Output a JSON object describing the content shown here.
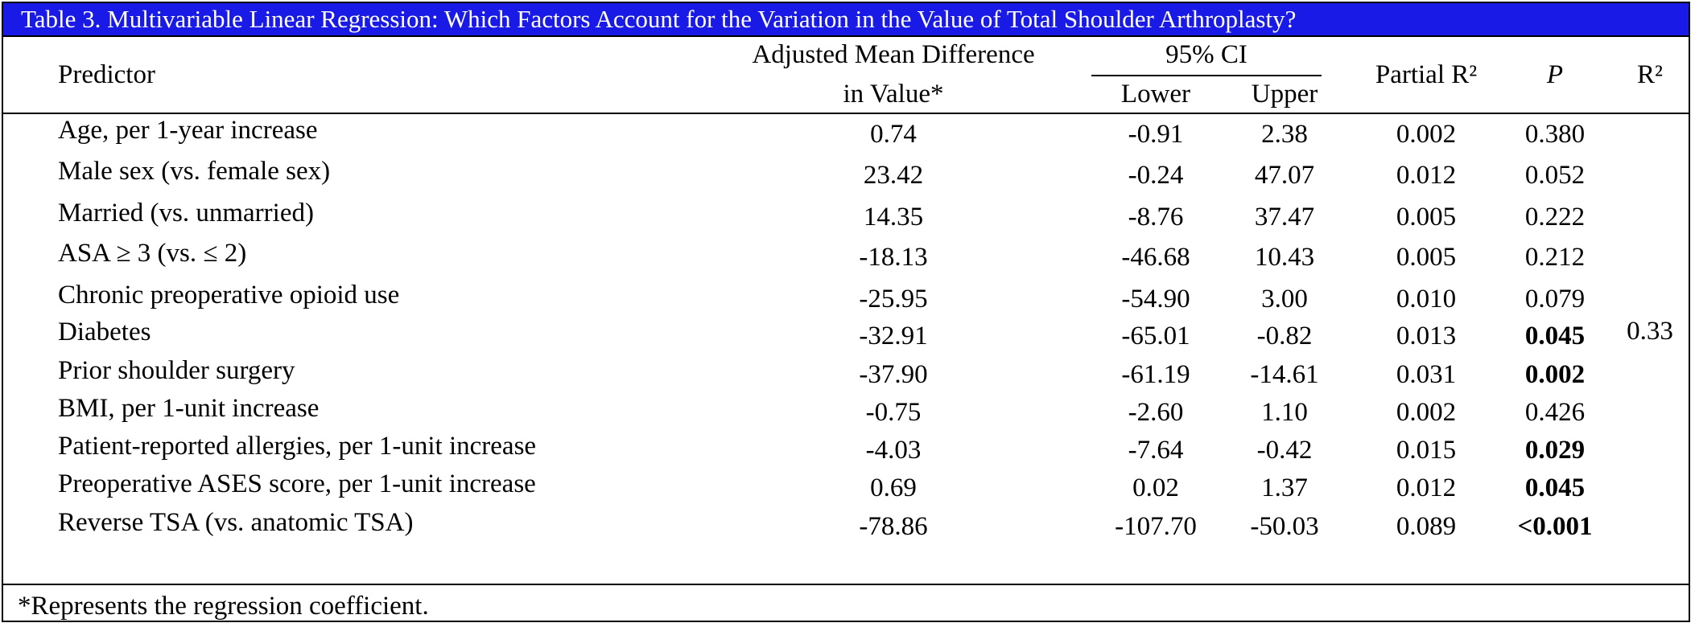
{
  "title": "Table 3. Multivariable Linear Regression: Which Factors Account for the Variation in the Value of Total Shoulder Arthroplasty?",
  "headers": {
    "predictor": "Predictor",
    "amd_line1": "Adjusted Mean Difference",
    "amd_line2": "in Value*",
    "ci": "95% CI",
    "lower": "Lower",
    "upper": "Upper",
    "partial_r2": "Partial R²",
    "p": "P",
    "r2": "R²"
  },
  "rows": [
    {
      "predictor": "Age, per 1-year increase",
      "amd": "0.74",
      "lower": "-0.91",
      "upper": "2.38",
      "partial_r2": "0.002",
      "p": "0.380"
    },
    {
      "predictor": "Male sex (vs. female sex)",
      "amd": "23.42",
      "lower": "-0.24",
      "upper": "47.07",
      "partial_r2": "0.012",
      "p": "0.052"
    },
    {
      "predictor": "Married (vs. unmarried)",
      "amd": "14.35",
      "lower": "-8.76",
      "upper": "37.47",
      "partial_r2": "0.005",
      "p": "0.222"
    },
    {
      "predictor": "ASA ≥ 3 (vs. ≤ 2)",
      "amd": "-18.13",
      "lower": "-46.68",
      "upper": "10.43",
      "partial_r2": "0.005",
      "p": "0.212"
    },
    {
      "predictor": "Chronic preoperative opioid use",
      "amd": "-25.95",
      "lower": "-54.90",
      "upper": "3.00",
      "partial_r2": "0.010",
      "p": "0.079"
    },
    {
      "predictor": "Diabetes",
      "amd": "-32.91",
      "lower": "-65.01",
      "upper": "-0.82",
      "partial_r2": "0.013",
      "p": "0.045"
    },
    {
      "predictor": "Prior shoulder surgery",
      "amd": "-37.90",
      "lower": "-61.19",
      "upper": "-14.61",
      "partial_r2": "0.031",
      "p": "0.002"
    },
    {
      "predictor": "BMI, per 1-unit increase",
      "amd": "-0.75",
      "lower": "-2.60",
      "upper": "1.10",
      "partial_r2": "0.002",
      "p": "0.426"
    },
    {
      "predictor": "Patient-reported allergies, per 1-unit increase",
      "amd": "-4.03",
      "lower": "-7.64",
      "upper": "-0.42",
      "partial_r2": "0.015",
      "p": "0.029"
    },
    {
      "predictor": "Preoperative ASES score, per 1-unit increase",
      "amd": "0.69",
      "lower": "0.02",
      "upper": "1.37",
      "partial_r2": "0.012",
      "p": "0.045"
    },
    {
      "predictor": "Reverse TSA (vs. anatomic TSA)",
      "amd": "-78.86",
      "lower": "-107.70",
      "upper": "-50.03",
      "partial_r2": "0.089",
      "p": "<0.001"
    }
  ],
  "r2_value": "0.33",
  "footnote": "*Represents the regression coefficient."
}
